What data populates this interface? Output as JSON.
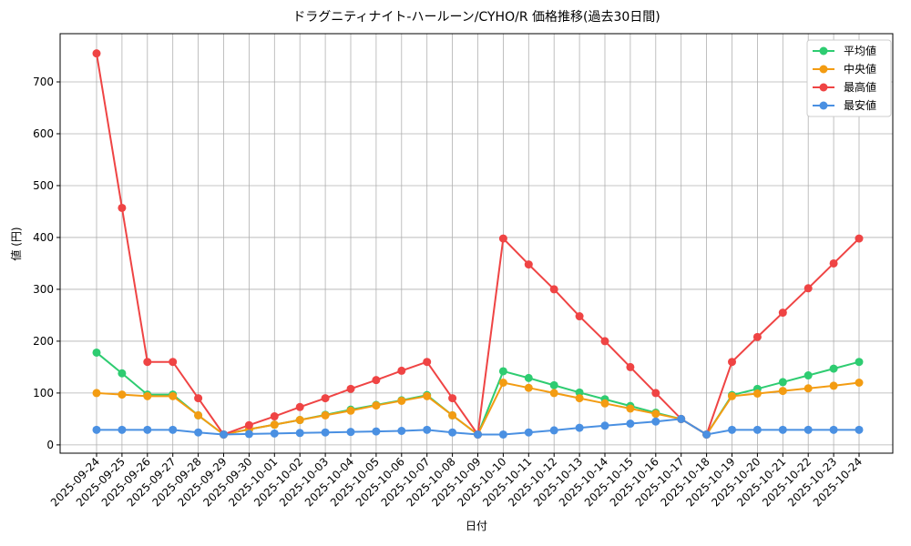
{
  "chart_data": {
    "type": "line",
    "title": "ドラグニティナイト-ハールーン/CYHO/R 価格推移(過去30日間)",
    "x_label": "日付",
    "y_label": "値 (円)",
    "categories": [
      "2025-09-24",
      "2025-09-25",
      "2025-09-26",
      "2025-09-27",
      "2025-09-28",
      "2025-09-29",
      "2025-09-30",
      "2025-10-01",
      "2025-10-02",
      "2025-10-03",
      "2025-10-04",
      "2025-10-05",
      "2025-10-06",
      "2025-10-07",
      "2025-10-08",
      "2025-10-09",
      "2025-10-10",
      "2025-10-11",
      "2025-10-12",
      "2025-10-13",
      "2025-10-14",
      "2025-10-15",
      "2025-10-16",
      "2025-10-17",
      "2025-10-18",
      "2025-10-19",
      "2025-10-20",
      "2025-10-21",
      "2025-10-22",
      "2025-10-23",
      "2025-10-24"
    ],
    "series": [
      {
        "name": "平均値",
        "color": "#2ecc71",
        "values": [
          178,
          138,
          97,
          97,
          57,
          20,
          30,
          39,
          48,
          58,
          68,
          77,
          86,
          96,
          57,
          20,
          142,
          129,
          115,
          101,
          88,
          75,
          62,
          50,
          20,
          96,
          108,
          121,
          134,
          147,
          160
        ]
      },
      {
        "name": "中央値",
        "color": "#f39c12",
        "values": [
          100,
          97,
          94,
          94,
          57,
          20,
          30,
          39,
          48,
          57,
          66,
          76,
          85,
          94,
          57,
          20,
          120,
          110,
          100,
          90,
          80,
          70,
          60,
          50,
          20,
          94,
          99,
          104,
          109,
          114,
          120
        ]
      },
      {
        "name": "最高値",
        "color": "#ef4444",
        "values": [
          755,
          457,
          160,
          160,
          90,
          20,
          38,
          55,
          73,
          90,
          108,
          125,
          143,
          160,
          90,
          20,
          398,
          348,
          300,
          248,
          200,
          150,
          100,
          50,
          20,
          160,
          208,
          255,
          302,
          350,
          398
        ]
      },
      {
        "name": "最安値",
        "color": "#4a90e2",
        "values": [
          29,
          29,
          29,
          29,
          24,
          20,
          21,
          22,
          23,
          24,
          25,
          26,
          27,
          29,
          24,
          20,
          20,
          24,
          28,
          33,
          37,
          41,
          45,
          50,
          20,
          29,
          29,
          29,
          29,
          29,
          29
        ]
      }
    ],
    "ylim": [
      -16,
      793
    ],
    "yticks": [
      0,
      100,
      200,
      300,
      400,
      500,
      600,
      700
    ],
    "grid": true,
    "legend": "upper right"
  }
}
